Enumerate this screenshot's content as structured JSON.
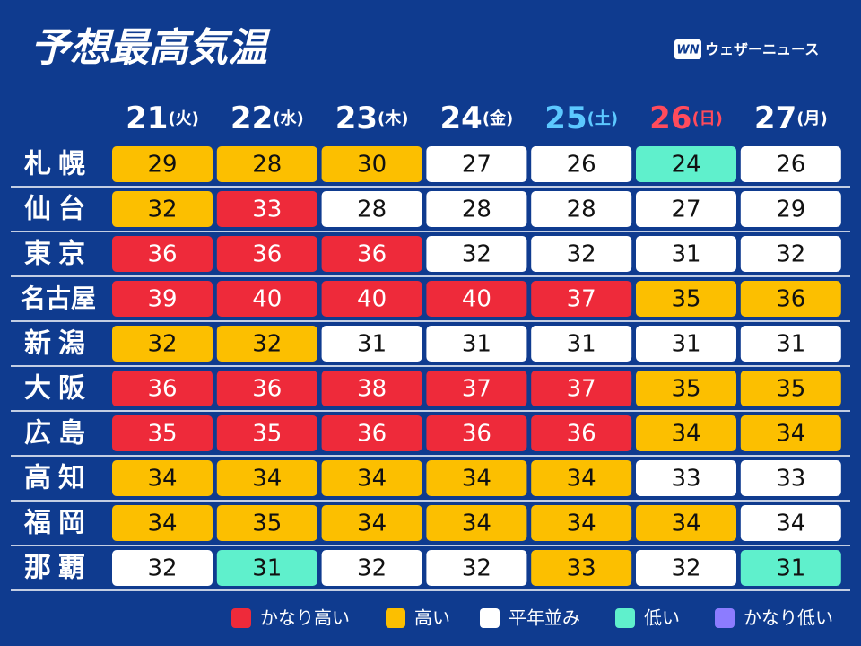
{
  "header": {
    "title": "予想最高気温",
    "brand": "ウェザーニュース"
  },
  "days": [
    {
      "date": "21",
      "weekday": "(火)",
      "color": "#ffffff"
    },
    {
      "date": "22",
      "weekday": "(水)",
      "color": "#ffffff"
    },
    {
      "date": "23",
      "weekday": "(木)",
      "color": "#ffffff"
    },
    {
      "date": "24",
      "weekday": "(金)",
      "color": "#ffffff"
    },
    {
      "date": "25",
      "weekday": "(土)",
      "color": "#5cc8ff"
    },
    {
      "date": "26",
      "weekday": "(日)",
      "color": "#ff4b5c"
    },
    {
      "date": "27",
      "weekday": "(月)",
      "color": "#ffffff"
    }
  ],
  "rows": [
    {
      "city": "札幌",
      "cells": [
        {
          "value": 29,
          "color": "#fcbf00"
        },
        {
          "value": 28,
          "color": "#fcbf00"
        },
        {
          "value": 30,
          "color": "#fcbf00"
        },
        {
          "value": 27,
          "color": "#ffffff"
        },
        {
          "value": 26,
          "color": "#ffffff"
        },
        {
          "value": 24,
          "color": "#5ff0cc"
        },
        {
          "value": 26,
          "color": "#ffffff"
        }
      ]
    },
    {
      "city": "仙台",
      "cells": [
        {
          "value": 32,
          "color": "#fcbf00"
        },
        {
          "value": 33,
          "color": "#ee2a3a"
        },
        {
          "value": 28,
          "color": "#ffffff"
        },
        {
          "value": 28,
          "color": "#ffffff"
        },
        {
          "value": 28,
          "color": "#ffffff"
        },
        {
          "value": 27,
          "color": "#ffffff"
        },
        {
          "value": 29,
          "color": "#ffffff"
        }
      ]
    },
    {
      "city": "東京",
      "cells": [
        {
          "value": 36,
          "color": "#ee2a3a"
        },
        {
          "value": 36,
          "color": "#ee2a3a"
        },
        {
          "value": 36,
          "color": "#ee2a3a"
        },
        {
          "value": 32,
          "color": "#ffffff"
        },
        {
          "value": 32,
          "color": "#ffffff"
        },
        {
          "value": 31,
          "color": "#ffffff"
        },
        {
          "value": 32,
          "color": "#ffffff"
        }
      ]
    },
    {
      "city": "名古屋",
      "cells": [
        {
          "value": 39,
          "color": "#ee2a3a"
        },
        {
          "value": 40,
          "color": "#ee2a3a"
        },
        {
          "value": 40,
          "color": "#ee2a3a"
        },
        {
          "value": 40,
          "color": "#ee2a3a"
        },
        {
          "value": 37,
          "color": "#ee2a3a"
        },
        {
          "value": 35,
          "color": "#fcbf00"
        },
        {
          "value": 36,
          "color": "#fcbf00"
        }
      ]
    },
    {
      "city": "新潟",
      "cells": [
        {
          "value": 32,
          "color": "#fcbf00"
        },
        {
          "value": 32,
          "color": "#fcbf00"
        },
        {
          "value": 31,
          "color": "#ffffff"
        },
        {
          "value": 31,
          "color": "#ffffff"
        },
        {
          "value": 31,
          "color": "#ffffff"
        },
        {
          "value": 31,
          "color": "#ffffff"
        },
        {
          "value": 31,
          "color": "#ffffff"
        }
      ]
    },
    {
      "city": "大阪",
      "cells": [
        {
          "value": 36,
          "color": "#ee2a3a"
        },
        {
          "value": 36,
          "color": "#ee2a3a"
        },
        {
          "value": 38,
          "color": "#ee2a3a"
        },
        {
          "value": 37,
          "color": "#ee2a3a"
        },
        {
          "value": 37,
          "color": "#ee2a3a"
        },
        {
          "value": 35,
          "color": "#fcbf00"
        },
        {
          "value": 35,
          "color": "#fcbf00"
        }
      ]
    },
    {
      "city": "広島",
      "cells": [
        {
          "value": 35,
          "color": "#ee2a3a"
        },
        {
          "value": 35,
          "color": "#ee2a3a"
        },
        {
          "value": 36,
          "color": "#ee2a3a"
        },
        {
          "value": 36,
          "color": "#ee2a3a"
        },
        {
          "value": 36,
          "color": "#ee2a3a"
        },
        {
          "value": 34,
          "color": "#fcbf00"
        },
        {
          "value": 34,
          "color": "#fcbf00"
        }
      ]
    },
    {
      "city": "高知",
      "cells": [
        {
          "value": 34,
          "color": "#fcbf00"
        },
        {
          "value": 34,
          "color": "#fcbf00"
        },
        {
          "value": 34,
          "color": "#fcbf00"
        },
        {
          "value": 34,
          "color": "#fcbf00"
        },
        {
          "value": 34,
          "color": "#fcbf00"
        },
        {
          "value": 33,
          "color": "#ffffff"
        },
        {
          "value": 33,
          "color": "#ffffff"
        }
      ]
    },
    {
      "city": "福岡",
      "cells": [
        {
          "value": 34,
          "color": "#fcbf00"
        },
        {
          "value": 35,
          "color": "#fcbf00"
        },
        {
          "value": 34,
          "color": "#fcbf00"
        },
        {
          "value": 34,
          "color": "#fcbf00"
        },
        {
          "value": 34,
          "color": "#fcbf00"
        },
        {
          "value": 34,
          "color": "#fcbf00"
        },
        {
          "value": 34,
          "color": "#ffffff"
        }
      ]
    },
    {
      "city": "那覇",
      "cells": [
        {
          "value": 32,
          "color": "#ffffff"
        },
        {
          "value": 31,
          "color": "#5ff0cc"
        },
        {
          "value": 32,
          "color": "#ffffff"
        },
        {
          "value": 32,
          "color": "#ffffff"
        },
        {
          "value": 33,
          "color": "#fcbf00"
        },
        {
          "value": 32,
          "color": "#ffffff"
        },
        {
          "value": 31,
          "color": "#5ff0cc"
        }
      ]
    }
  ],
  "legend": [
    {
      "label": "かなり高い",
      "color": "#ee2a3a"
    },
    {
      "label": "高い",
      "color": "#fcbf00"
    },
    {
      "label": "平年並み",
      "color": "#ffffff"
    },
    {
      "label": "低い",
      "color": "#5ff0cc"
    },
    {
      "label": "かなり低い",
      "color": "#8c7cff"
    }
  ]
}
